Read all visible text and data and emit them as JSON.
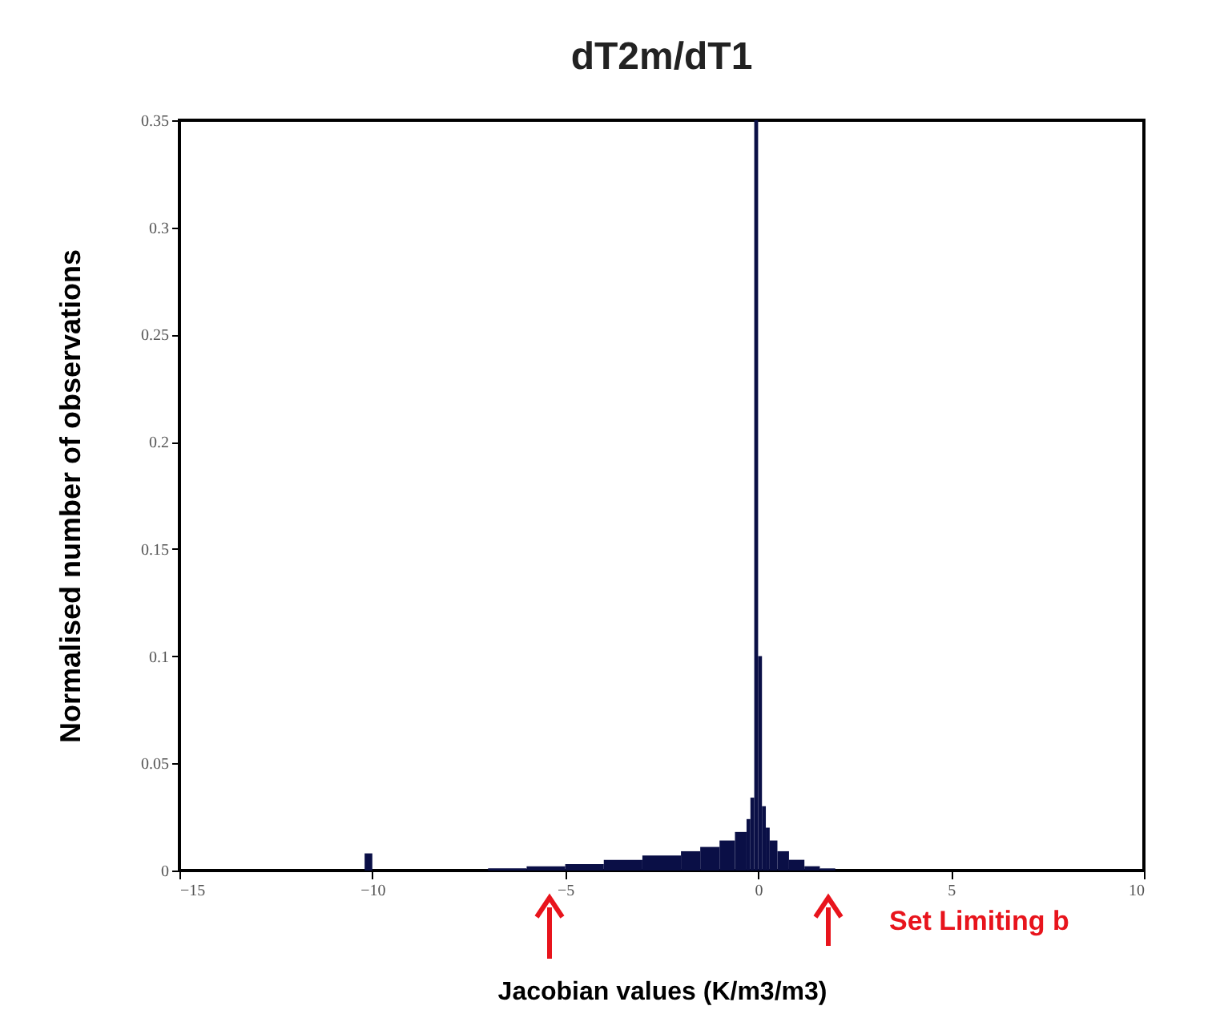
{
  "chart_data": {
    "type": "histogram",
    "title": "dT2m/dT1",
    "xlabel": "Jacobian values (K/m3/m3)",
    "ylabel": "Normalised number of observations",
    "annotations": [
      "Set Limiting b"
    ],
    "bins": [
      -10.2,
      -10,
      -7,
      -6,
      -5,
      -4,
      -3,
      -2,
      -1.5,
      -1,
      -0.6,
      -0.3,
      -0.2,
      -0.1,
      0,
      0.1,
      0.2,
      0.3,
      0.5,
      0.8,
      1.2,
      1.6,
      2.0
    ],
    "values": [
      0.008,
      0,
      0.001,
      0.002,
      0.003,
      0.005,
      0.007,
      0.009,
      0.011,
      0.014,
      0.018,
      0.024,
      0.034,
      0.35,
      0.1,
      0.03,
      0.02,
      0.014,
      0.009,
      0.005,
      0.002,
      0.001
    ],
    "color": "#0a0f46",
    "xlim": [
      -15,
      10
    ],
    "xticks": [
      -15,
      -10,
      -5,
      0,
      5,
      10
    ],
    "ylim": [
      0,
      0.35
    ],
    "yticks": [
      0,
      0.05,
      0.1,
      0.15,
      0.2,
      0.25,
      0.3,
      0.35
    ]
  }
}
